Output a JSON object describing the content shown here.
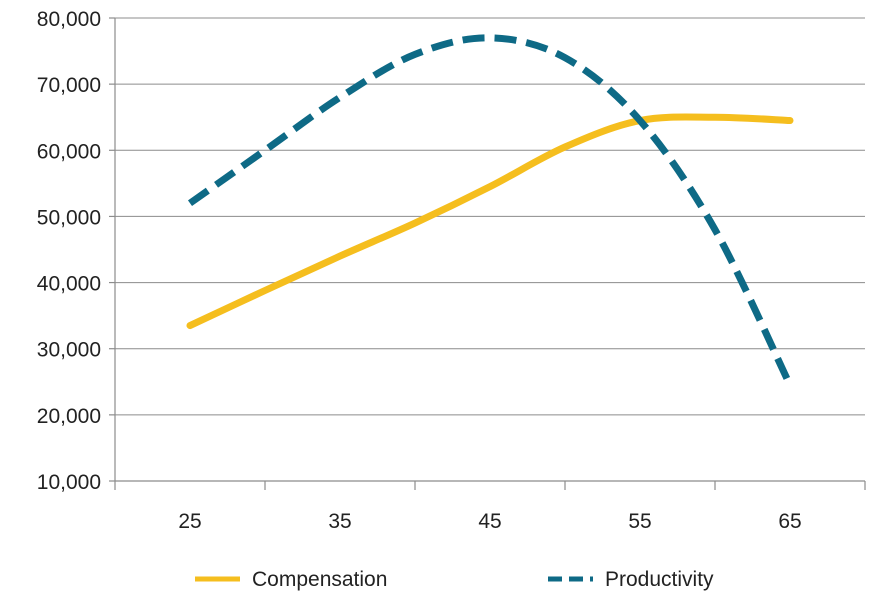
{
  "chart_data": {
    "type": "line",
    "x": [
      25,
      30,
      35,
      40,
      45,
      50,
      55,
      60,
      65
    ],
    "xticks": [
      "25",
      "35",
      "45",
      "55",
      "65"
    ],
    "yticks": [
      "10,000",
      "20,000",
      "30,000",
      "40,000",
      "50,000",
      "60,000",
      "70,000",
      "80,000"
    ],
    "xlim": [
      20,
      70
    ],
    "ylim": [
      10000,
      80000
    ],
    "grid": "horizontal",
    "legend_position": "bottom",
    "series": [
      {
        "name": "Compensation",
        "color": "#F5BE1E",
        "style": "solid",
        "values": [
          33500,
          38800,
          44000,
          49000,
          54500,
          60500,
          64500,
          65000,
          64500
        ]
      },
      {
        "name": "Productivity",
        "color": "#0E6A86",
        "style": "dashed",
        "values": [
          52000,
          60000,
          68000,
          74500,
          77000,
          74000,
          64500,
          48000,
          24500
        ]
      }
    ]
  }
}
